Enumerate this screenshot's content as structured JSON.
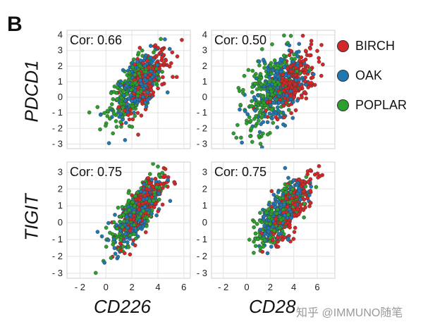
{
  "panel_label": "B",
  "legend": [
    {
      "name": "BIRCH",
      "color": "#d62728"
    },
    {
      "name": "OAK",
      "color": "#1f77b4"
    },
    {
      "name": "POPLAR",
      "color": "#2ca02c"
    }
  ],
  "row_labels": [
    "PDCD1",
    "TIGIT"
  ],
  "col_labels": [
    "CD226",
    "CD28"
  ],
  "watermark": "知乎 @IMMUNO随笔",
  "y_ticks": [
    {
      "v": 4,
      "label": "4"
    },
    {
      "v": 3,
      "label": "3"
    },
    {
      "v": 2,
      "label": "2"
    },
    {
      "v": 1,
      "label": "1"
    },
    {
      "v": 0,
      "label": "0"
    },
    {
      "v": -1,
      "label": "- 1"
    },
    {
      "v": -2,
      "label": "- 2"
    },
    {
      "v": -3,
      "label": "- 3"
    }
  ],
  "x_ticks": [
    {
      "v": -2,
      "label": "- 2"
    },
    {
      "v": 0,
      "label": "0"
    },
    {
      "v": 2,
      "label": "2"
    },
    {
      "v": 4,
      "label": "4"
    },
    {
      "v": 6,
      "label": "6"
    }
  ],
  "chart_data": [
    {
      "type": "scatter",
      "xlabel": "CD226",
      "ylabel": "PDCD1",
      "annotation": "Cor: 0.66",
      "correlation": 0.66,
      "xlim": [
        -3,
        6.5
      ],
      "ylim": [
        -3.3,
        4.3
      ],
      "series": [
        {
          "name": "BIRCH",
          "center": [
            3.0,
            1.0
          ],
          "spread": [
            0.9,
            1.0
          ]
        },
        {
          "name": "OAK",
          "center": [
            2.5,
            0.8
          ],
          "spread": [
            1.0,
            1.1
          ]
        },
        {
          "name": "POPLAR",
          "center": [
            2.2,
            0.6
          ],
          "spread": [
            1.0,
            1.1
          ]
        }
      ]
    },
    {
      "type": "scatter",
      "xlabel": "CD28",
      "ylabel": "PDCD1",
      "annotation": "Cor: 0.50",
      "correlation": 0.5,
      "xlim": [
        -3,
        7.5
      ],
      "ylim": [
        -3.3,
        4.3
      ],
      "series": [
        {
          "name": "BIRCH",
          "center": [
            4.0,
            1.0
          ],
          "spread": [
            0.9,
            1.0
          ]
        },
        {
          "name": "OAK",
          "center": [
            2.7,
            0.6
          ],
          "spread": [
            1.1,
            1.2
          ]
        },
        {
          "name": "POPLAR",
          "center": [
            1.8,
            0.3
          ],
          "spread": [
            1.2,
            1.3
          ]
        }
      ]
    },
    {
      "type": "scatter",
      "xlabel": "CD226",
      "ylabel": "TIGIT",
      "annotation": "Cor: 0.75",
      "correlation": 0.75,
      "xlim": [
        -3,
        6.5
      ],
      "ylim": [
        -3.3,
        3.6
      ],
      "series": [
        {
          "name": "BIRCH",
          "center": [
            2.8,
            0.9
          ],
          "spread": [
            0.9,
            1.0
          ]
        },
        {
          "name": "OAK",
          "center": [
            2.4,
            0.6
          ],
          "spread": [
            0.9,
            1.0
          ]
        },
        {
          "name": "POPLAR",
          "center": [
            2.2,
            0.5
          ],
          "spread": [
            0.9,
            1.0
          ]
        }
      ]
    },
    {
      "type": "scatter",
      "xlabel": "CD28",
      "ylabel": "TIGIT",
      "annotation": "Cor: 0.75",
      "correlation": 0.75,
      "xlim": [
        -3,
        7.5
      ],
      "ylim": [
        -3.3,
        3.6
      ],
      "series": [
        {
          "name": "BIRCH",
          "center": [
            3.9,
            1.0
          ],
          "spread": [
            0.9,
            1.0
          ]
        },
        {
          "name": "OAK",
          "center": [
            2.9,
            0.6
          ],
          "spread": [
            1.0,
            1.0
          ]
        },
        {
          "name": "POPLAR",
          "center": [
            2.6,
            0.3
          ],
          "spread": [
            1.0,
            1.0
          ]
        }
      ]
    }
  ]
}
